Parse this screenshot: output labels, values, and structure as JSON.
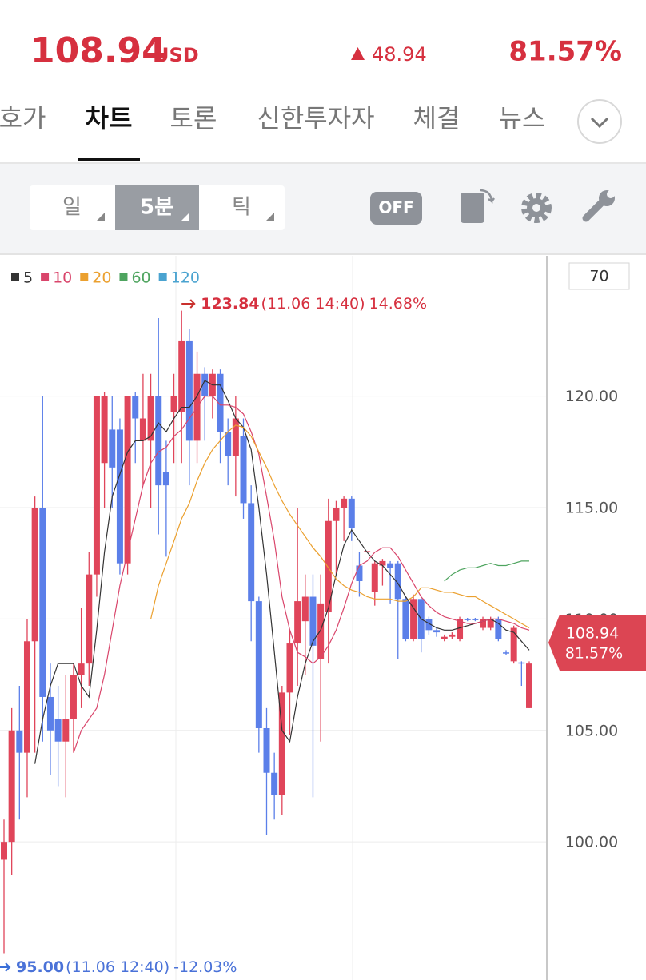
{
  "header": {
    "price": 108.94,
    "currency": "USD",
    "change": 48.94,
    "change_rate": "81.57%"
  },
  "tabs": [
    "호가",
    "차트",
    "토론",
    "신한투자자",
    "체결",
    "뉴스"
  ],
  "active_tab": 1,
  "periods": [
    "일",
    "5분",
    "틱"
  ],
  "active_period": 1,
  "toggle": "OFF",
  "count_input": "70",
  "chart_data": {
    "type": "candlestick",
    "up_color": "#e0455a",
    "down_color": "#5b7fe9",
    "ylim": [
      93.8,
      126.3
    ],
    "yticks": [
      {
        "value": 100,
        "label": "100.00"
      },
      {
        "value": 105,
        "label": "105.00"
      },
      {
        "value": 110,
        "label": "110.00"
      },
      {
        "value": 115,
        "label": "115.00"
      },
      {
        "value": 120,
        "label": "120.00"
      }
    ],
    "grid": true,
    "open": [
      99.2,
      100,
      105,
      104,
      109,
      115,
      106.5,
      105.5,
      104.5,
      105.5,
      107.5,
      108,
      112,
      117,
      118.5,
      118.5,
      112.5,
      120,
      118,
      118,
      120,
      116.6,
      119.3,
      119.3,
      122.5,
      118,
      121,
      120,
      121,
      118.4,
      117.3,
      118.2,
      115.2,
      110.8,
      105.1,
      103.1,
      102.1,
      106.7,
      108.9,
      109.9,
      111,
      108.2,
      110.3,
      114.4,
      115,
      115.4,
      112.4,
      113,
      111.2,
      112.4,
      112.5,
      112.5,
      110.9,
      109.1,
      110.9,
      110,
      109.5,
      109.1,
      109.2,
      109.1,
      110,
      110,
      109.6,
      109.6,
      110,
      108.5,
      108.1,
      108.05,
      106
    ],
    "close": [
      100,
      105,
      104,
      109,
      115,
      106.5,
      105,
      104.5,
      105.5,
      107.5,
      108,
      112,
      120,
      120,
      116.8,
      112.5,
      120,
      119,
      119,
      120,
      116,
      116,
      120,
      122.5,
      118,
      121,
      120,
      121,
      118.4,
      117.3,
      119,
      115.2,
      110.8,
      105.1,
      103.1,
      102.1,
      106.7,
      108.9,
      110.8,
      111,
      108.8,
      110.7,
      114.4,
      115,
      115.4,
      114.1,
      111.7,
      113.05,
      112.5,
      112.6,
      112.3,
      110.9,
      109.1,
      110.9,
      109.1,
      109.5,
      109.4,
      109.2,
      109.3,
      110,
      109.95,
      109.95,
      110,
      110,
      109.1,
      108.45,
      109.6,
      108,
      108
    ],
    "high": [
      101,
      106,
      107,
      110,
      115.5,
      120,
      108,
      107,
      107.5,
      108,
      110.5,
      113,
      120,
      120.2,
      120,
      119,
      120,
      120.2,
      121,
      121,
      123.5,
      118,
      121,
      123.84,
      123,
      122,
      121.3,
      121.2,
      121.2,
      119,
      120,
      119,
      116,
      111,
      106,
      104,
      107,
      109.5,
      115,
      112,
      112,
      112,
      115.4,
      115.3,
      115.5,
      115.5,
      113,
      113.05,
      112.6,
      112.7,
      112.6,
      112.6,
      111,
      111.1,
      111,
      110.1,
      109.6,
      109.3,
      109.4,
      110.1,
      110.05,
      110.05,
      110.1,
      110.1,
      110.1,
      108.6,
      109.7,
      108.1,
      108.1
    ],
    "low": [
      95,
      98.5,
      101,
      102,
      104,
      104.5,
      103,
      102.5,
      102,
      104,
      106,
      107,
      111,
      115,
      115,
      112,
      112,
      117,
      116,
      115,
      113.8,
      112.8,
      117,
      117,
      116,
      117,
      118,
      119,
      117,
      116,
      115.5,
      114.5,
      109,
      104,
      100.3,
      101,
      101.2,
      104.8,
      107,
      107.5,
      102,
      104.5,
      108,
      112,
      113.5,
      113.5,
      111,
      113,
      110.6,
      111.5,
      110.7,
      108.2,
      109,
      109,
      108.5,
      109.3,
      109.2,
      109,
      109.1,
      109,
      109.9,
      109.9,
      109.5,
      109.5,
      109,
      108.4,
      108,
      107,
      106
    ],
    "moving_averages": [
      {
        "name": "5",
        "color": "#333333",
        "values": [
          null,
          null,
          null,
          null,
          103.5,
          105.5,
          107,
          108,
          108,
          108,
          107,
          106.5,
          109.5,
          113,
          115.5,
          116.5,
          117.5,
          118,
          118,
          118.2,
          118.8,
          118.4,
          119,
          119.5,
          119.5,
          120,
          120.7,
          120.5,
          120.5,
          119.8,
          119,
          118.6,
          117.6,
          115,
          112,
          108.5,
          105,
          104.5,
          106.5,
          108,
          109,
          109.5,
          110.5,
          112,
          113.3,
          114,
          113.5,
          113,
          112.6,
          112.4,
          112,
          111.6,
          111,
          110.5,
          110,
          109.8,
          109.6,
          109.5,
          109.5,
          109.6,
          109.7,
          109.8,
          109.9,
          110,
          109.8,
          109.5,
          109.4,
          109,
          108.6
        ]
      },
      {
        "name": "10",
        "color": "#d9456b",
        "values": [
          null,
          null,
          null,
          null,
          null,
          null,
          null,
          null,
          null,
          104,
          105,
          105.5,
          106,
          107.5,
          109.5,
          111.5,
          113,
          114.5,
          116,
          117,
          117.5,
          117.7,
          118.2,
          118.5,
          119,
          119.5,
          120,
          120,
          119.6,
          119.6,
          119.5,
          119.2,
          118.4,
          117.4,
          115.5,
          113.5,
          111,
          109.5,
          108.5,
          108.3,
          108,
          108.3,
          108.8,
          109.5,
          110.5,
          111.6,
          112.4,
          112.6,
          113,
          113.2,
          113.2,
          112.8,
          112.2,
          111.6,
          111,
          110.6,
          110.3,
          110.1,
          110,
          109.9,
          109.8,
          109.8,
          109.9,
          110,
          110,
          109.9,
          109.8,
          109.6,
          109.5
        ]
      },
      {
        "name": "20",
        "color": "#eba02f",
        "values": [
          null,
          null,
          null,
          null,
          null,
          null,
          null,
          null,
          null,
          null,
          null,
          null,
          null,
          null,
          null,
          null,
          null,
          null,
          null,
          110,
          111.5,
          112.5,
          113.5,
          114.5,
          115.2,
          116.2,
          117,
          117.6,
          118,
          118.4,
          118.7,
          118.6,
          118.2,
          117.5,
          116.8,
          116,
          115.3,
          114.7,
          114.2,
          113.7,
          113.2,
          112.8,
          112.3,
          111.8,
          111.5,
          111.3,
          111.2,
          111,
          110.9,
          110.9,
          110.9,
          110.8,
          110.8,
          111,
          111.4,
          111.4,
          111.3,
          111.2,
          111.2,
          111.1,
          111,
          111,
          110.8,
          110.6,
          110.4,
          110.2,
          110,
          109.8,
          109.6
        ]
      },
      {
        "name": "60",
        "color": "#4ea45f",
        "values": [
          null,
          null,
          null,
          null,
          null,
          null,
          null,
          null,
          null,
          null,
          null,
          null,
          null,
          null,
          null,
          null,
          null,
          null,
          null,
          null,
          null,
          null,
          null,
          null,
          null,
          null,
          null,
          null,
          null,
          null,
          null,
          null,
          null,
          null,
          null,
          null,
          null,
          null,
          null,
          null,
          null,
          null,
          null,
          null,
          null,
          null,
          null,
          null,
          null,
          null,
          null,
          null,
          null,
          null,
          null,
          null,
          null,
          111.7,
          112,
          112.2,
          112.3,
          112.3,
          112.4,
          112.5,
          112.4,
          112.4,
          112.5,
          112.6,
          112.6
        ]
      },
      {
        "name": "120",
        "color": "#4aa3d0"
      }
    ],
    "high_label": {
      "price": "123.84",
      "time": "(11.06 14:40)",
      "change": "14.68%"
    },
    "low_label": {
      "price": "95.00",
      "time": "(11.06 12:40)",
      "change": "-12.03%"
    },
    "current_price": 108.94,
    "current_change": "81.57%"
  }
}
